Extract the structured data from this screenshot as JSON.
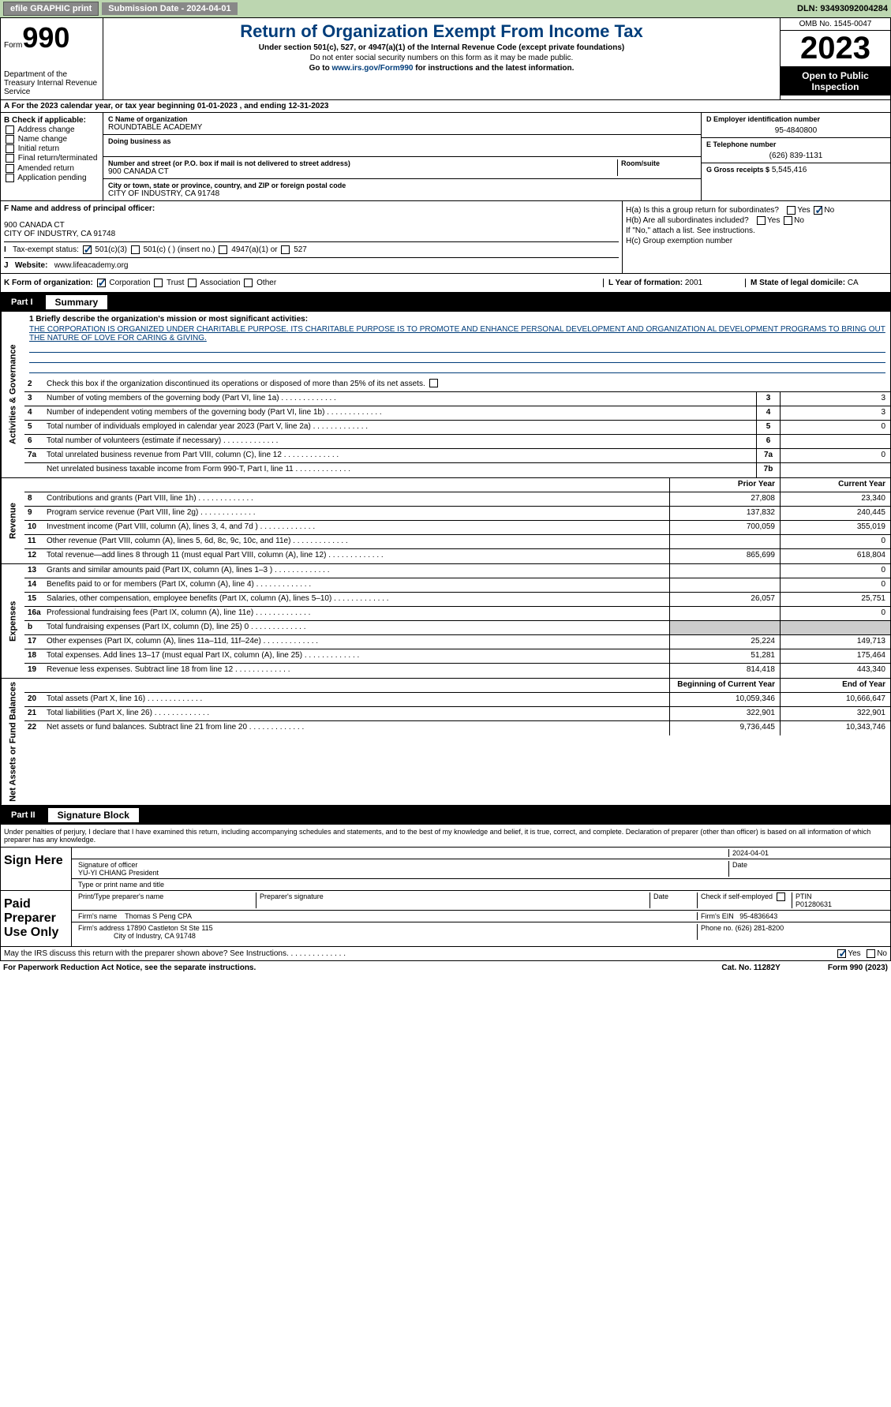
{
  "topbar": {
    "efile": "efile GRAPHIC print",
    "submission": "Submission Date - 2024-04-01",
    "dln": "DLN: 93493092004284"
  },
  "header": {
    "form_label": "Form",
    "form_number": "990",
    "dept": "Department of the Treasury Internal Revenue Service",
    "title": "Return of Organization Exempt From Income Tax",
    "subtitle": "Under section 501(c), 527, or 4947(a)(1) of the Internal Revenue Code (except private foundations)",
    "ssn": "Do not enter social security numbers on this form as it may be made public.",
    "goto": "Go to www.irs.gov/Form990 for instructions and the latest information.",
    "goto_url": "www.irs.gov/Form990",
    "omb": "OMB No. 1545-0047",
    "year": "2023",
    "inspection": "Open to Public Inspection"
  },
  "row_a": "A For the 2023 calendar year, or tax year beginning 01-01-2023   , and ending 12-31-2023",
  "section_b": {
    "label": "B Check if applicable:",
    "items": [
      "Address change",
      "Name change",
      "Initial return",
      "Final return/terminated",
      "Amended return",
      "Application pending"
    ]
  },
  "section_c": {
    "name_label": "C Name of organization",
    "org_name": "ROUNDTABLE ACADEMY",
    "dba_label": "Doing business as",
    "street_label": "Number and street (or P.O. box if mail is not delivered to street address)",
    "room_label": "Room/suite",
    "street": "900 CANADA CT",
    "city_label": "City or town, state or province, country, and ZIP or foreign postal code",
    "city": "CITY OF INDUSTRY, CA  91748"
  },
  "section_d": {
    "label": "D Employer identification number",
    "value": "95-4840800"
  },
  "section_e": {
    "label": "E Telephone number",
    "value": "(626) 839-1131"
  },
  "section_g": {
    "label": "G Gross receipts $",
    "value": "5,545,416"
  },
  "section_f": {
    "label": "F  Name and address of principal officer:",
    "addr1": "900 CANADA CT",
    "addr2": "CITY OF INDUSTRY, CA  91748"
  },
  "section_h": {
    "ha": "H(a)  Is this a group return for subordinates?",
    "hb": "H(b)  Are all subordinates included?",
    "hb_note": "If \"No,\" attach a list. See instructions.",
    "hc": "H(c)  Group exemption number"
  },
  "section_i": {
    "label": "Tax-exempt status:",
    "opts": [
      "501(c)(3)",
      "501(c) (  ) (insert no.)",
      "4947(a)(1) or",
      "527"
    ]
  },
  "section_j": {
    "label": "Website:",
    "value": "www.lifeacademy.org"
  },
  "section_k": {
    "label": "K Form of organization:",
    "opts": [
      "Corporation",
      "Trust",
      "Association",
      "Other"
    ]
  },
  "section_l": {
    "label": "L Year of formation:",
    "value": "2001"
  },
  "section_m": {
    "label": "M State of legal domicile:",
    "value": "CA"
  },
  "part1": {
    "header_part": "Part I",
    "header_title": "Summary",
    "side_labels": [
      "Activities & Governance",
      "Revenue",
      "Expenses",
      "Net Assets or Fund Balances"
    ],
    "line1_label": "1  Briefly describe the organization's mission or most significant activities:",
    "mission": "THE CORPORATION IS ORGANIZED UNDER CHARITABLE PURPOSE. ITS CHARITABLE PURPOSE IS TO PROMOTE AND ENHANCE PERSONAL DEVELOPMENT AND ORGANIZATION AL DEVELOPMENT PROGRAMS TO BRING OUT THE NATURE OF LOVE FOR CARING & GIVING.",
    "line2": "Check this box      if the organization discontinued its operations or disposed of more than 25% of its net assets.",
    "lines_ag": [
      {
        "n": "3",
        "t": "Number of voting members of the governing body (Part VI, line 1a)",
        "box": "3",
        "v": "3"
      },
      {
        "n": "4",
        "t": "Number of independent voting members of the governing body (Part VI, line 1b)",
        "box": "4",
        "v": "3"
      },
      {
        "n": "5",
        "t": "Total number of individuals employed in calendar year 2023 (Part V, line 2a)",
        "box": "5",
        "v": "0"
      },
      {
        "n": "6",
        "t": "Total number of volunteers (estimate if necessary)",
        "box": "6",
        "v": ""
      },
      {
        "n": "7a",
        "t": "Total unrelated business revenue from Part VIII, column (C), line 12",
        "box": "7a",
        "v": "0"
      },
      {
        "n": "",
        "t": "Net unrelated business taxable income from Form 990-T, Part I, line 11",
        "box": "7b",
        "v": ""
      }
    ],
    "col_headers": {
      "prior": "Prior Year",
      "current": "Current Year"
    },
    "lines_rev": [
      {
        "n": "8",
        "t": "Contributions and grants (Part VIII, line 1h)",
        "p": "27,808",
        "c": "23,340"
      },
      {
        "n": "9",
        "t": "Program service revenue (Part VIII, line 2g)",
        "p": "137,832",
        "c": "240,445"
      },
      {
        "n": "10",
        "t": "Investment income (Part VIII, column (A), lines 3, 4, and 7d )",
        "p": "700,059",
        "c": "355,019"
      },
      {
        "n": "11",
        "t": "Other revenue (Part VIII, column (A), lines 5, 6d, 8c, 9c, 10c, and 11e)",
        "p": "",
        "c": "0"
      },
      {
        "n": "12",
        "t": "Total revenue—add lines 8 through 11 (must equal Part VIII, column (A), line 12)",
        "p": "865,699",
        "c": "618,804"
      }
    ],
    "lines_exp": [
      {
        "n": "13",
        "t": "Grants and similar amounts paid (Part IX, column (A), lines 1–3 )",
        "p": "",
        "c": "0"
      },
      {
        "n": "14",
        "t": "Benefits paid to or for members (Part IX, column (A), line 4)",
        "p": "",
        "c": "0"
      },
      {
        "n": "15",
        "t": "Salaries, other compensation, employee benefits (Part IX, column (A), lines 5–10)",
        "p": "26,057",
        "c": "25,751"
      },
      {
        "n": "16a",
        "t": "Professional fundraising fees (Part IX, column (A), line 11e)",
        "p": "",
        "c": "0"
      },
      {
        "n": "b",
        "t": "Total fundraising expenses (Part IX, column (D), line 25) 0",
        "p": "shade",
        "c": "shade"
      },
      {
        "n": "17",
        "t": "Other expenses (Part IX, column (A), lines 11a–11d, 11f–24e)",
        "p": "25,224",
        "c": "149,713"
      },
      {
        "n": "18",
        "t": "Total expenses. Add lines 13–17 (must equal Part IX, column (A), line 25)",
        "p": "51,281",
        "c": "175,464"
      },
      {
        "n": "19",
        "t": "Revenue less expenses. Subtract line 18 from line 12",
        "p": "814,418",
        "c": "443,340"
      }
    ],
    "col_headers2": {
      "prior": "Beginning of Current Year",
      "current": "End of Year"
    },
    "lines_net": [
      {
        "n": "20",
        "t": "Total assets (Part X, line 16)",
        "p": "10,059,346",
        "c": "10,666,647"
      },
      {
        "n": "21",
        "t": "Total liabilities (Part X, line 26)",
        "p": "322,901",
        "c": "322,901"
      },
      {
        "n": "22",
        "t": "Net assets or fund balances. Subtract line 21 from line 20",
        "p": "9,736,445",
        "c": "10,343,746"
      }
    ]
  },
  "part2": {
    "header_part": "Part II",
    "header_title": "Signature Block",
    "penalties": "Under penalties of perjury, I declare that I have examined this return, including accompanying schedules and statements, and to the best of my knowledge and belief, it is true, correct, and complete. Declaration of preparer (other than officer) is based on all information of which preparer has any knowledge.",
    "sign_here": "Sign Here",
    "sig_officer": "Signature of officer",
    "officer_name": "YU-YI CHIANG  President",
    "name_title": "Type or print name and title",
    "sig_date": "2024-04-01",
    "date_label": "Date",
    "paid": "Paid Preparer Use Only",
    "prep_name_label": "Print/Type preparer's name",
    "prep_sig_label": "Preparer's signature",
    "check_if": "Check       if self-employed",
    "ptin_label": "PTIN",
    "ptin": "P01280631",
    "firm_name_label": "Firm's name",
    "firm_name": "Thomas S Peng CPA",
    "firm_ein_label": "Firm's EIN",
    "firm_ein": "95-4836643",
    "firm_addr_label": "Firm's address",
    "firm_addr1": "17890 Castleton St Ste 115",
    "firm_addr2": "City of Industry, CA  91748",
    "phone_label": "Phone no.",
    "phone": "(626) 281-8200"
  },
  "footer": {
    "discuss": "May the IRS discuss this return with the preparer shown above? See Instructions.",
    "paperwork": "For Paperwork Reduction Act Notice, see the separate instructions.",
    "cat": "Cat. No. 11282Y",
    "form": "Form 990 (2023)"
  }
}
